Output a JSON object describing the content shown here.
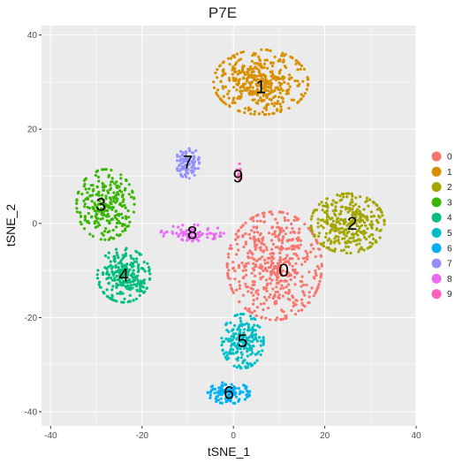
{
  "chart_data": {
    "type": "scatter",
    "title": "P7E",
    "xlabel": "tSNE_1",
    "ylabel": "tSNE_2",
    "xlim": [
      -42,
      40
    ],
    "ylim": [
      -43,
      42
    ],
    "xticks": [
      -40,
      -20,
      0,
      20,
      40
    ],
    "yticks": [
      -40,
      -20,
      0,
      20,
      40
    ],
    "grid": true,
    "legend_position": "right",
    "background_color": "#ebebeb",
    "series": [
      {
        "name": "0",
        "color": "#F8766D",
        "label_pos": [
          11,
          -10
        ],
        "center": [
          9,
          -9
        ],
        "spread": [
          9,
          10
        ],
        "n": 520
      },
      {
        "name": "1",
        "color": "#D89000",
        "label_pos": [
          6,
          29
        ],
        "center": [
          6,
          30
        ],
        "spread": [
          9,
          6
        ],
        "n": 420
      },
      {
        "name": "2",
        "color": "#A3A500",
        "label_pos": [
          26,
          0
        ],
        "center": [
          25,
          0
        ],
        "spread": [
          7,
          5.5
        ],
        "n": 330
      },
      {
        "name": "3",
        "color": "#39B600",
        "label_pos": [
          -29,
          4
        ],
        "center": [
          -28,
          4
        ],
        "spread": [
          5.5,
          6.5
        ],
        "n": 260
      },
      {
        "name": "4",
        "color": "#00BF7D",
        "label_pos": [
          -24,
          -11
        ],
        "center": [
          -24,
          -11
        ],
        "spread": [
          5,
          5
        ],
        "n": 240
      },
      {
        "name": "5",
        "color": "#00BFC4",
        "label_pos": [
          2,
          -25
        ],
        "center": [
          2,
          -25
        ],
        "spread": [
          4,
          5
        ],
        "n": 200
      },
      {
        "name": "6",
        "color": "#00B0F6",
        "label_pos": [
          -1,
          -36
        ],
        "center": [
          -1,
          -36
        ],
        "spread": [
          4,
          2
        ],
        "n": 110
      },
      {
        "name": "7",
        "color": "#9590FF",
        "label_pos": [
          -10,
          13
        ],
        "center": [
          -10,
          13
        ],
        "spread": [
          2.2,
          3
        ],
        "n": 90
      },
      {
        "name": "8",
        "color": "#E76BF3",
        "label_pos": [
          -9,
          -2
        ],
        "center": [
          -9,
          -2
        ],
        "spread": [
          6,
          1.5
        ],
        "n": 80
      },
      {
        "name": "9",
        "color": "#FF62BC",
        "label_pos": [
          1,
          10
        ],
        "center": [
          1,
          11
        ],
        "spread": [
          1,
          1.5
        ],
        "n": 10
      }
    ]
  }
}
